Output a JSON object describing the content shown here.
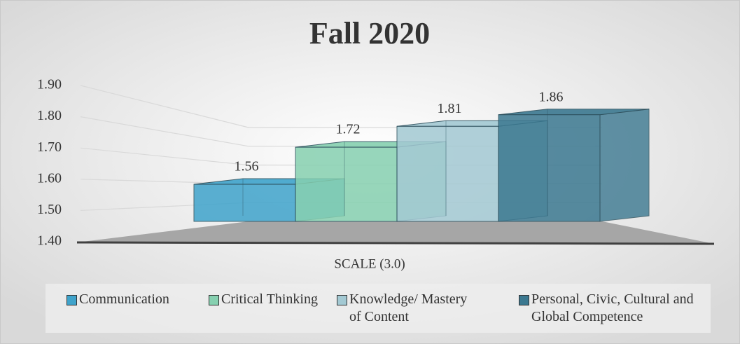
{
  "chart_data": {
    "type": "bar3d",
    "title": "Fall 2020",
    "categories": [
      "SCALE (3.0)"
    ],
    "series": [
      {
        "name": "Communication",
        "color": "#3fa3cb",
        "values": [
          1.56
        ]
      },
      {
        "name": "Critical Thinking",
        "color": "#86d0b0",
        "values": [
          1.72
        ]
      },
      {
        "name": "Knowledge/ Mastery of Content",
        "color": "#a3c9d3",
        "values": [
          1.81
        ]
      },
      {
        "name": "Personal, Civic, Cultural and Global Competence",
        "color": "#3b7890",
        "values": [
          1.86
        ]
      }
    ],
    "ylim": [
      1.4,
      1.9
    ],
    "yticks": [
      {
        "value": 1.4,
        "label": "1.40"
      },
      {
        "value": 1.5,
        "label": "1.50"
      },
      {
        "value": 1.6,
        "label": "1.60"
      },
      {
        "value": 1.7,
        "label": "1.70"
      },
      {
        "value": 1.8,
        "label": "1.80"
      },
      {
        "value": 1.9,
        "label": "1.90"
      }
    ],
    "grid": true,
    "legend": "bottom"
  }
}
